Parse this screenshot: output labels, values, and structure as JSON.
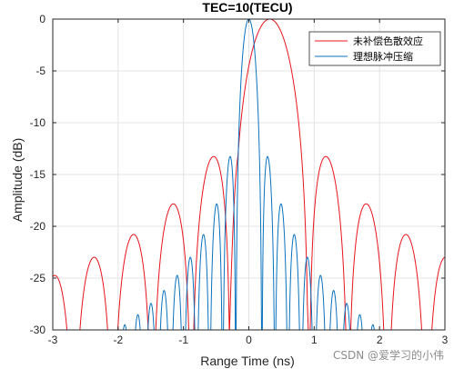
{
  "chart_data": {
    "type": "line",
    "title": "TEC=10(TECU)",
    "xlabel": "Range Time (ns)",
    "ylabel": "Amplitude (dB)",
    "xlim": [
      -3,
      3
    ],
    "ylim": [
      -30,
      0
    ],
    "xticks": [
      -3,
      -2,
      -1,
      0,
      1,
      2,
      3
    ],
    "xtick_labels": [
      "-3",
      "-2",
      "-1",
      "0",
      "1",
      "2",
      "3"
    ],
    "yticks": [
      0,
      -5,
      -10,
      -15,
      -20,
      -25,
      -30
    ],
    "ytick_labels": [
      "0",
      "-5",
      "-10",
      "-15",
      "-20",
      "-25",
      "-30"
    ],
    "grid": true,
    "legend_position": "top-right",
    "series": [
      {
        "name": "未补偿色散效应",
        "color": "#e8141c",
        "model": {
          "center": 0.32,
          "null_spacing": 0.3,
          "mainlobe_null_index": 2,
          "peak_db": 0,
          "shoulder_db": -12.7,
          "shoulder_offset": 0.46
        }
      },
      {
        "name": "理想脉冲压缩",
        "color": "#0a72bd",
        "model": {
          "center": 0.0,
          "null_spacing": 0.2,
          "mainlobe_null_index": 1,
          "peak_db": 0
        }
      }
    ]
  },
  "watermark": "CSDN @爱学习的小伟"
}
